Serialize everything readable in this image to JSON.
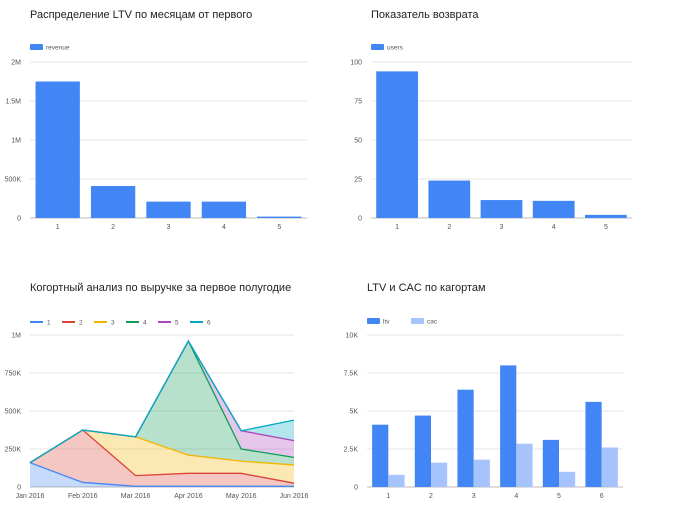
{
  "chart_data": [
    {
      "type": "bar",
      "title": "Распределение LTV по месяцам от первого",
      "categories": [
        "1",
        "2",
        "3",
        "4",
        "5"
      ],
      "series": [
        {
          "name": "revenue",
          "values": [
            1750000,
            410000,
            210000,
            210000,
            18000
          ],
          "color": "#4285f4"
        }
      ],
      "ylim": [
        0,
        2000000
      ],
      "yticks": [
        0,
        500000,
        1000000,
        1500000,
        2000000
      ],
      "ytick_labels": [
        "0",
        "500K",
        "1M",
        "1.5M",
        "2M"
      ],
      "grid": true,
      "legend": "top-left"
    },
    {
      "type": "bar",
      "title": "Показатель возврата",
      "categories": [
        "1",
        "2",
        "3",
        "4",
        "5"
      ],
      "series": [
        {
          "name": "users",
          "values": [
            94,
            24,
            11.5,
            11,
            2
          ],
          "color": "#4285f4"
        }
      ],
      "ylim": [
        0,
        100
      ],
      "yticks": [
        0,
        25,
        50,
        75,
        100
      ],
      "ytick_labels": [
        "0",
        "25",
        "50",
        "75",
        "100"
      ],
      "grid": true,
      "legend": "top-left"
    },
    {
      "type": "area",
      "title": "Когортный анализ по выручке за первое полугодие",
      "categories": [
        "Jan 2016",
        "Feb 2016",
        "Mar 2016",
        "Apr 2016",
        "May 2016",
        "Jun 2016"
      ],
      "series": [
        {
          "name": "1",
          "values": [
            160000,
            30000,
            5000,
            5000,
            5000,
            5000
          ],
          "color": "#4285f4"
        },
        {
          "name": "2",
          "values": [
            0,
            345000,
            70000,
            85000,
            85000,
            20000
          ],
          "color": "#db4437"
        },
        {
          "name": "3",
          "values": [
            0,
            0,
            255000,
            120000,
            80000,
            120000
          ],
          "color": "#f4b400"
        },
        {
          "name": "4",
          "values": [
            0,
            0,
            0,
            750000,
            80000,
            50000
          ],
          "color": "#0f9d58"
        },
        {
          "name": "5",
          "values": [
            0,
            0,
            0,
            0,
            120000,
            110000
          ],
          "color": "#ab47bc"
        },
        {
          "name": "6",
          "values": [
            0,
            0,
            0,
            0,
            0,
            135000
          ],
          "color": "#00acc1"
        }
      ],
      "stacked": true,
      "ylim": [
        0,
        1000000
      ],
      "yticks": [
        0,
        250000,
        500000,
        750000,
        1000000
      ],
      "ytick_labels": [
        "0",
        "250K",
        "500K",
        "750K",
        "1M"
      ],
      "grid": true,
      "legend": "top-left"
    },
    {
      "type": "bar",
      "title": "LTV и CAC по кагортам",
      "categories": [
        "1",
        "2",
        "3",
        "4",
        "5",
        "6"
      ],
      "series": [
        {
          "name": "ltv",
          "values": [
            4100,
            4700,
            6400,
            8000,
            3100,
            5600
          ],
          "color": "#4285f4"
        },
        {
          "name": "cac",
          "values": [
            800,
            1600,
            1800,
            2850,
            1000,
            2600
          ],
          "color": "#a6c4fb"
        }
      ],
      "ylim": [
        0,
        10000
      ],
      "yticks": [
        0,
        2500,
        5000,
        7500,
        10000
      ],
      "ytick_labels": [
        "0",
        "2.5K",
        "5K",
        "7.5K",
        "10K"
      ],
      "grid": true,
      "legend": "top-left"
    }
  ]
}
